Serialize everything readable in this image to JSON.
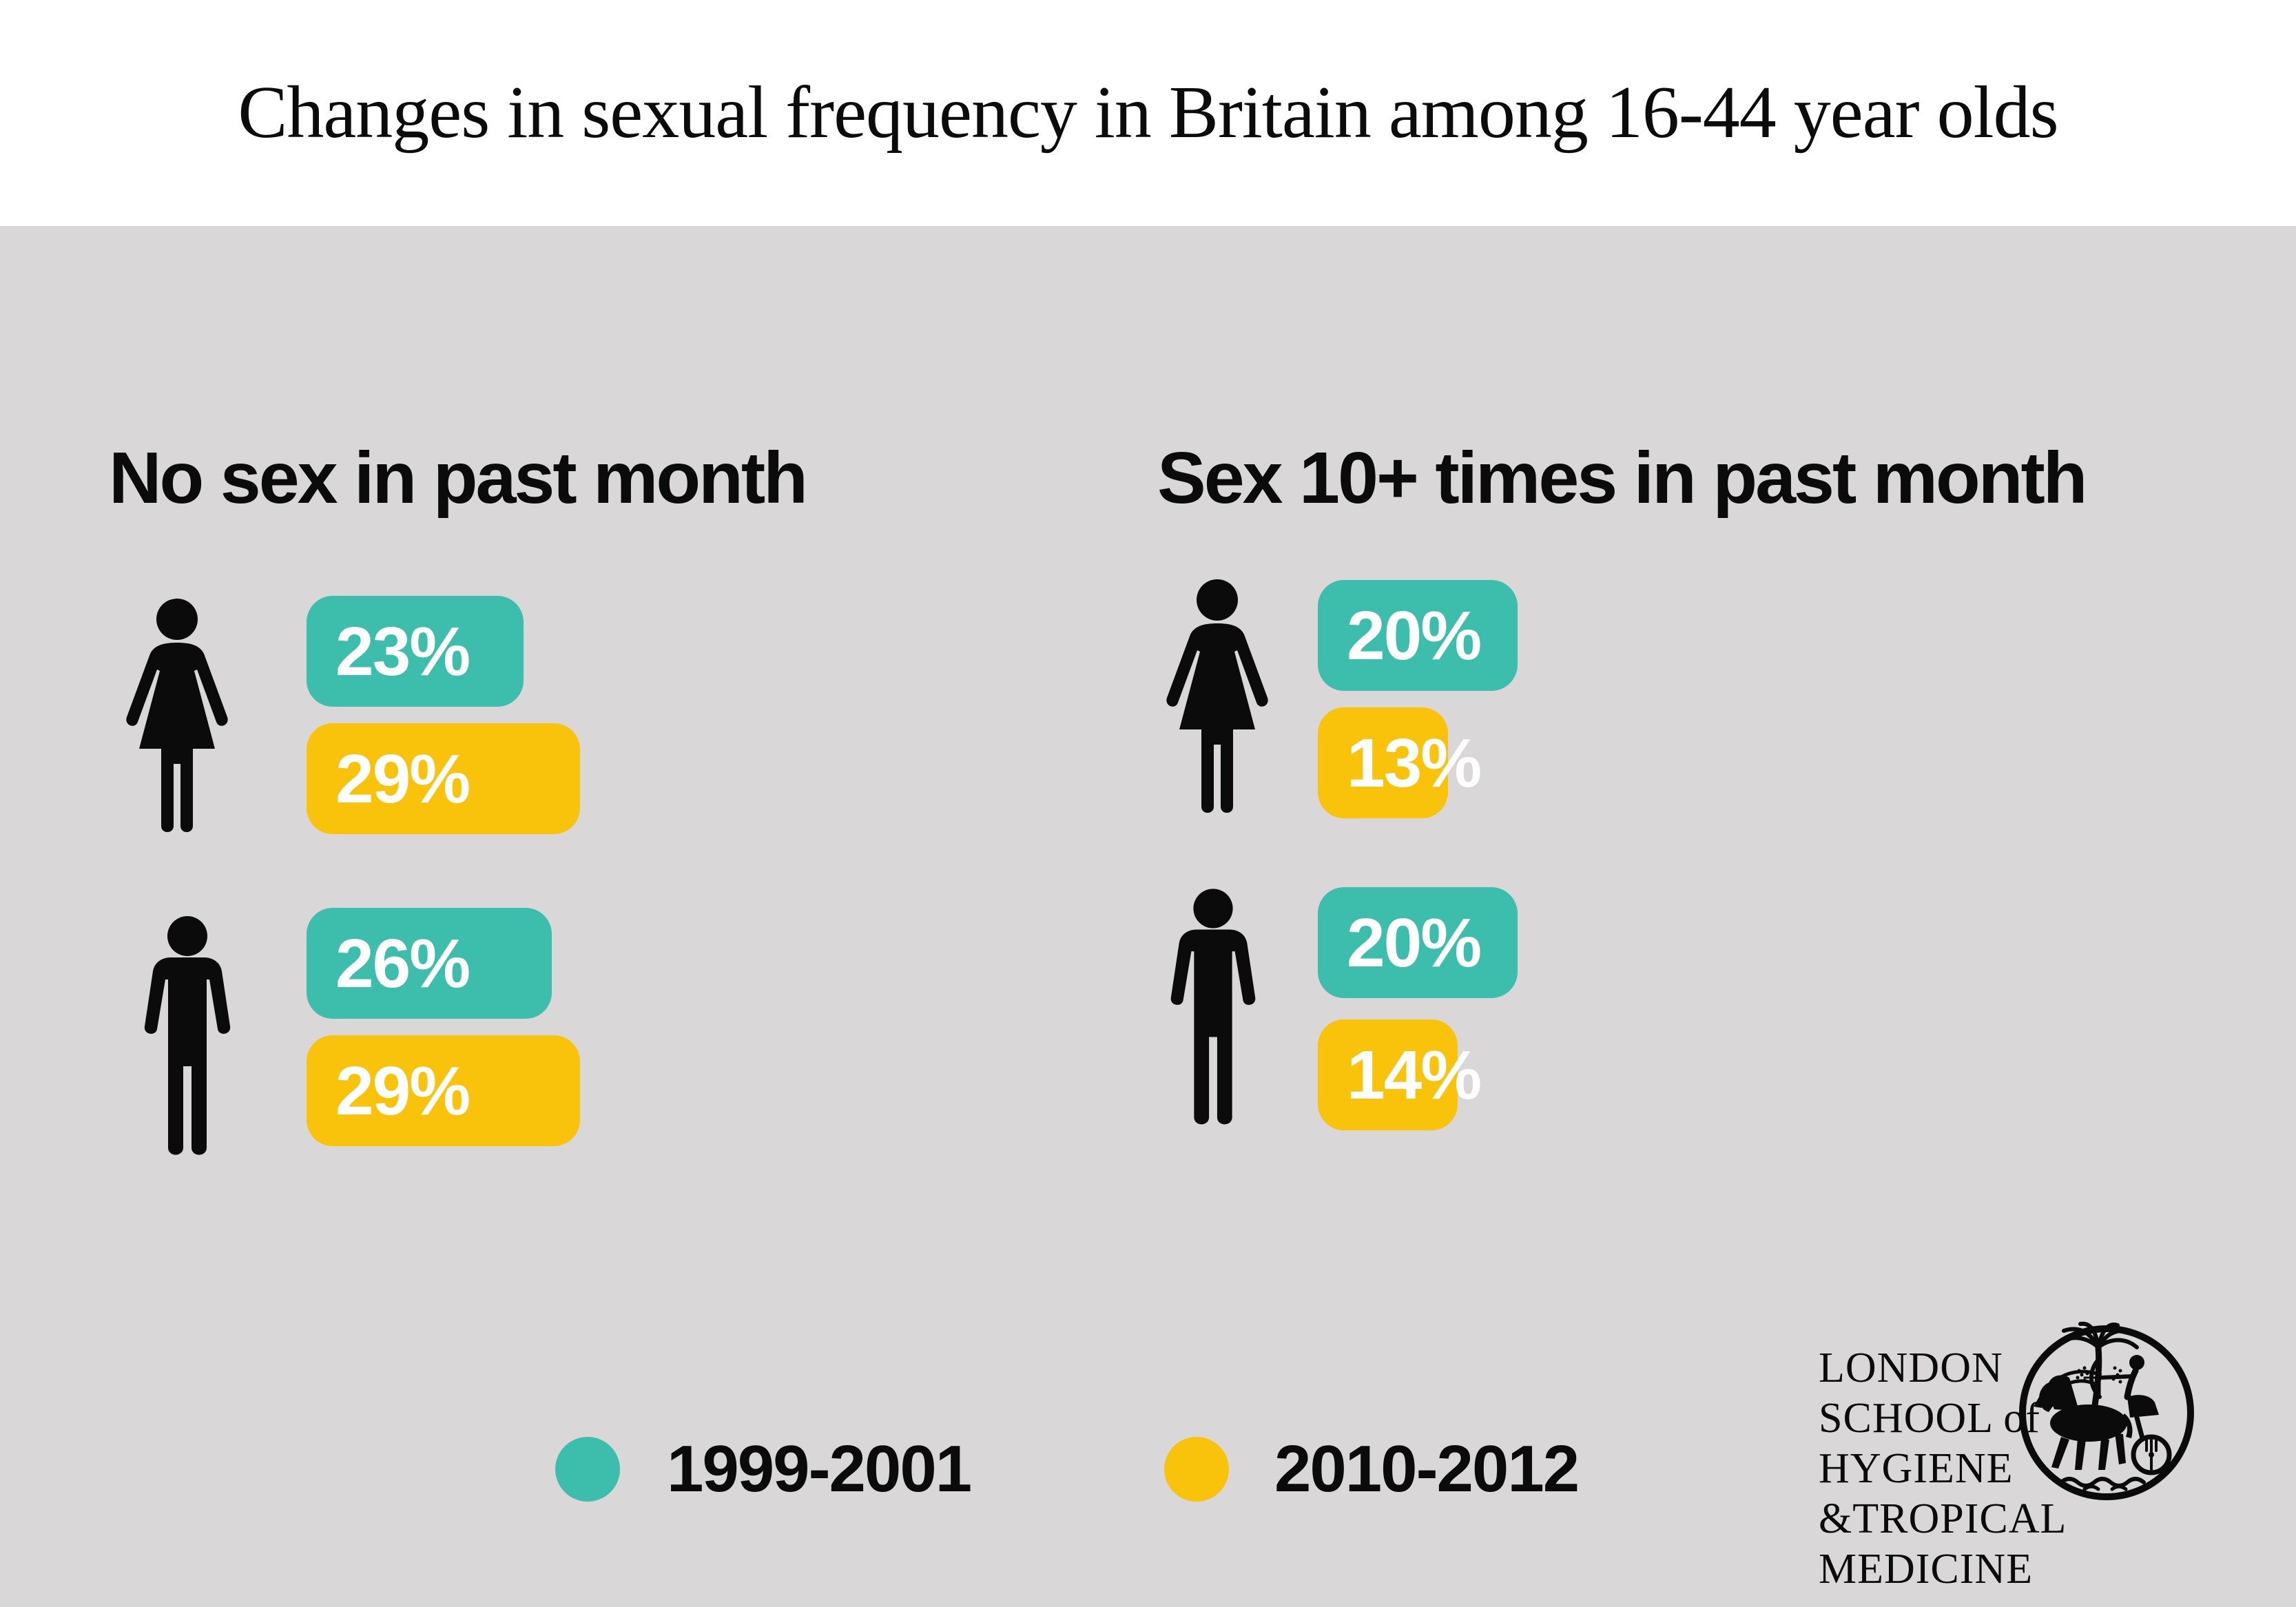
{
  "title": "Changes in sexual frequency in Britain among 16-44 year olds",
  "colors": {
    "teal": "#3DBEAC",
    "yellow": "#F8C30A",
    "background": "#D9D7D7",
    "header_bg": "#FFFFFF",
    "text": "#0B0B0B",
    "bar_label": "#FFFFFF"
  },
  "sections": [
    {
      "heading": "No sex in past month",
      "rows": [
        {
          "icon": "woman",
          "values": [
            {
              "period": "1999-2001",
              "value": 23,
              "label": "23%"
            },
            {
              "period": "2010-2012",
              "value": 29,
              "label": "29%"
            }
          ]
        },
        {
          "icon": "man",
          "values": [
            {
              "period": "1999-2001",
              "value": 26,
              "label": "26%"
            },
            {
              "period": "2010-2012",
              "value": 29,
              "label": "29%"
            }
          ]
        }
      ]
    },
    {
      "heading": "Sex 10+ times in past month",
      "rows": [
        {
          "icon": "woman",
          "values": [
            {
              "period": "1999-2001",
              "value": 20,
              "label": "20%"
            },
            {
              "period": "2010-2012",
              "value": 13,
              "label": "13%"
            }
          ]
        },
        {
          "icon": "man",
          "values": [
            {
              "period": "1999-2001",
              "value": 20,
              "label": "20%"
            },
            {
              "period": "2010-2012",
              "value": 14,
              "label": "14%"
            }
          ]
        }
      ]
    }
  ],
  "legend": [
    {
      "label": "1999-2001",
      "color_key": "teal"
    },
    {
      "label": "2010-2012",
      "color_key": "yellow"
    }
  ],
  "logo": {
    "line1": "LONDON",
    "line2": "SCHOOL of",
    "line3": "HYGIENE",
    "line4": "&TROPICAL",
    "line5": "MEDICINE",
    "emblem": "lshtm-horse-chariot-palm-seal"
  },
  "chart_data": {
    "type": "bar",
    "title": "Changes in sexual frequency in Britain among 16-44 year olds",
    "unit": "%",
    "categories": [
      "No sex in past month - Women",
      "No sex in past month - Men",
      "Sex 10+ times in past month - Women",
      "Sex 10+ times in past month - Men"
    ],
    "series": [
      {
        "name": "1999-2001",
        "color": "#3DBEAC",
        "values": [
          23,
          26,
          20,
          20
        ]
      },
      {
        "name": "2010-2012",
        "color": "#F8C30A",
        "values": [
          29,
          29,
          13,
          14
        ]
      }
    ],
    "orientation": "horizontal",
    "legend_position": "bottom",
    "grid": false,
    "xlim": [
      0,
      100
    ]
  }
}
